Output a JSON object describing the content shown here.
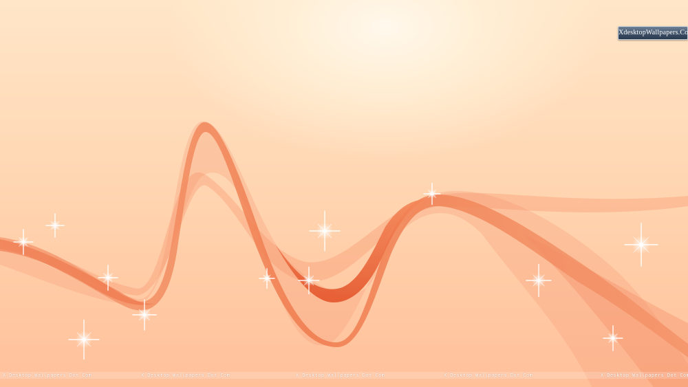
{
  "colors": {
    "background_light": "#fff8ec",
    "background_mid": "#ffd3ae",
    "background_dark": "#ffc09a",
    "wave_main": "#f28a5c",
    "wave_deep": "#e85a2c",
    "sparkle": "#ffffff"
  },
  "logo": {
    "text": "XdesktopWallpapers.Com"
  },
  "watermarks": [
    "X Desktop Wallpapers Dot Com",
    "X Desktop Wallpapers Dot Com",
    "X Desktop Wallpapers Dot Com",
    "X Desktop Wallpapers Dot Com",
    "X Desktop Wallpapers Dot Com"
  ],
  "icons": {
    "sparkle": "sparkle-star-icon"
  }
}
